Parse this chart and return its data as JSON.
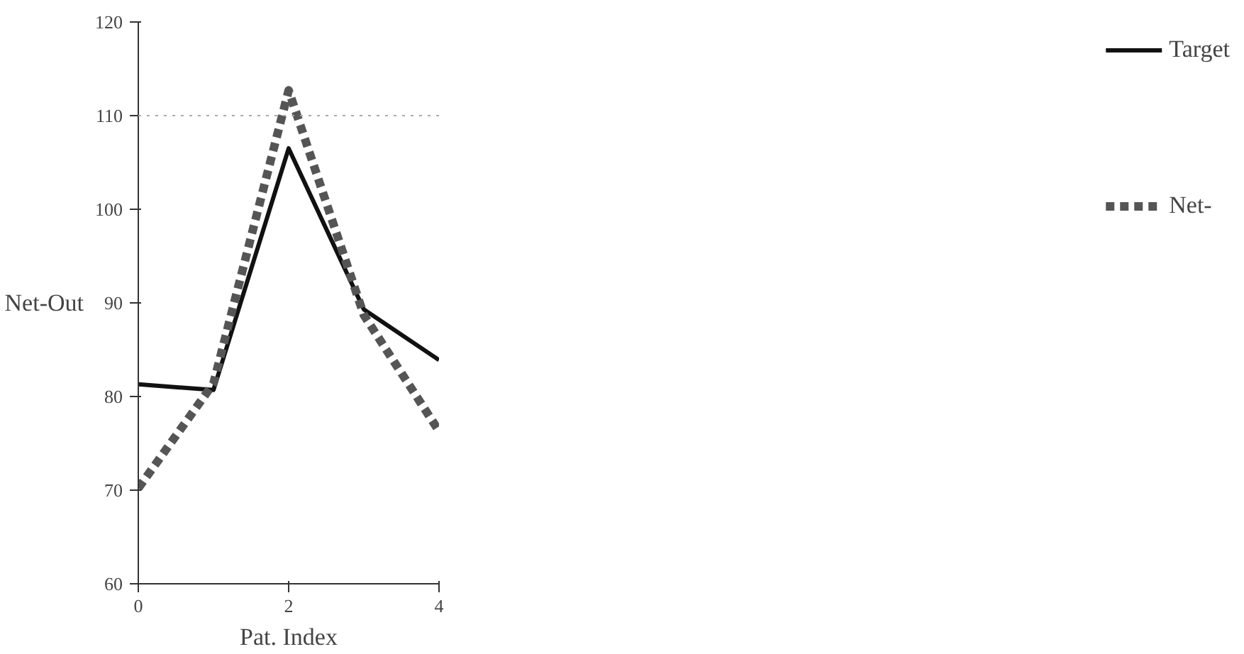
{
  "chart_data": {
    "type": "line",
    "xlabel": "Pat. Index",
    "ylabel": "Net-Out",
    "x": [
      0,
      1,
      2,
      3,
      4
    ],
    "series": [
      {
        "name": "Target",
        "color": "#111111",
        "line_style": "solid",
        "values": [
          81.3,
          80.7,
          106.5,
          89.3,
          83.9
        ]
      },
      {
        "name": "Net-",
        "color": "#555555",
        "line_style": "dashed",
        "values": [
          70.2,
          81.4,
          112.7,
          88.7,
          76.3
        ]
      }
    ],
    "xlim": [
      0,
      4
    ],
    "xticks": [
      0,
      2,
      4
    ],
    "ylim": [
      60,
      120
    ],
    "yticks": [
      60,
      70,
      80,
      90,
      100,
      110,
      120
    ],
    "ref_lines": [
      {
        "axis": "y",
        "value": 110,
        "label": null,
        "color": "#aaaaaa",
        "line_style": "dotted"
      }
    ],
    "grid": false,
    "legend": "right",
    "marker": "none"
  }
}
